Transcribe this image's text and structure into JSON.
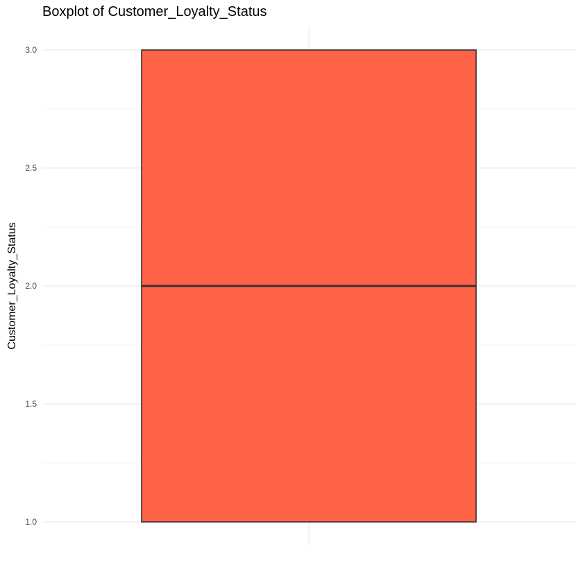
{
  "chart_data": {
    "type": "boxplot",
    "title": "Boxplot of Customer_Loyalty_Status",
    "xlabel": "",
    "ylabel": "Customer_Loyalty_Status",
    "ylim": [
      0.9,
      3.1
    ],
    "y_ticks": [
      1.0,
      1.5,
      2.0,
      2.5,
      3.0
    ],
    "y_tick_labels": [
      "1.0",
      "1.5",
      "2.0",
      "2.5",
      "3.0"
    ],
    "y_minor_ticks": [
      1.25,
      1.75,
      2.25,
      2.75
    ],
    "grid": true,
    "boxes": [
      {
        "min": 1.0,
        "q1": 1.0,
        "median": 2.0,
        "q3": 3.0,
        "max": 3.0
      }
    ],
    "fill_color": "#FF6347",
    "stroke_color": "#333333",
    "grid_color": "#ebebeb"
  }
}
